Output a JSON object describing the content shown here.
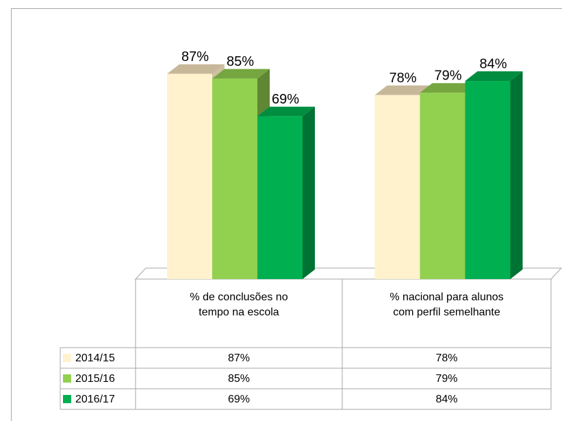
{
  "chart_data": {
    "type": "bar3d",
    "categories": [
      "% de conclusões no tempo na escola",
      "% nacional para alunos com perfil semelhante"
    ],
    "series": [
      {
        "name": "2014/15",
        "color": "#fff2cc",
        "values": [
          87,
          78
        ],
        "value_labels": [
          "87%",
          "78%"
        ]
      },
      {
        "name": "2015/16",
        "color": "#92d050",
        "values": [
          85,
          79
        ],
        "value_labels": [
          "85%",
          "79%"
        ]
      },
      {
        "name": "2016/17",
        "color": "#00b050",
        "values": [
          69,
          84
        ],
        "value_labels": [
          "69%",
          "84%"
        ]
      }
    ],
    "ylim": [
      0,
      100
    ],
    "grid": false,
    "data_table": true
  }
}
